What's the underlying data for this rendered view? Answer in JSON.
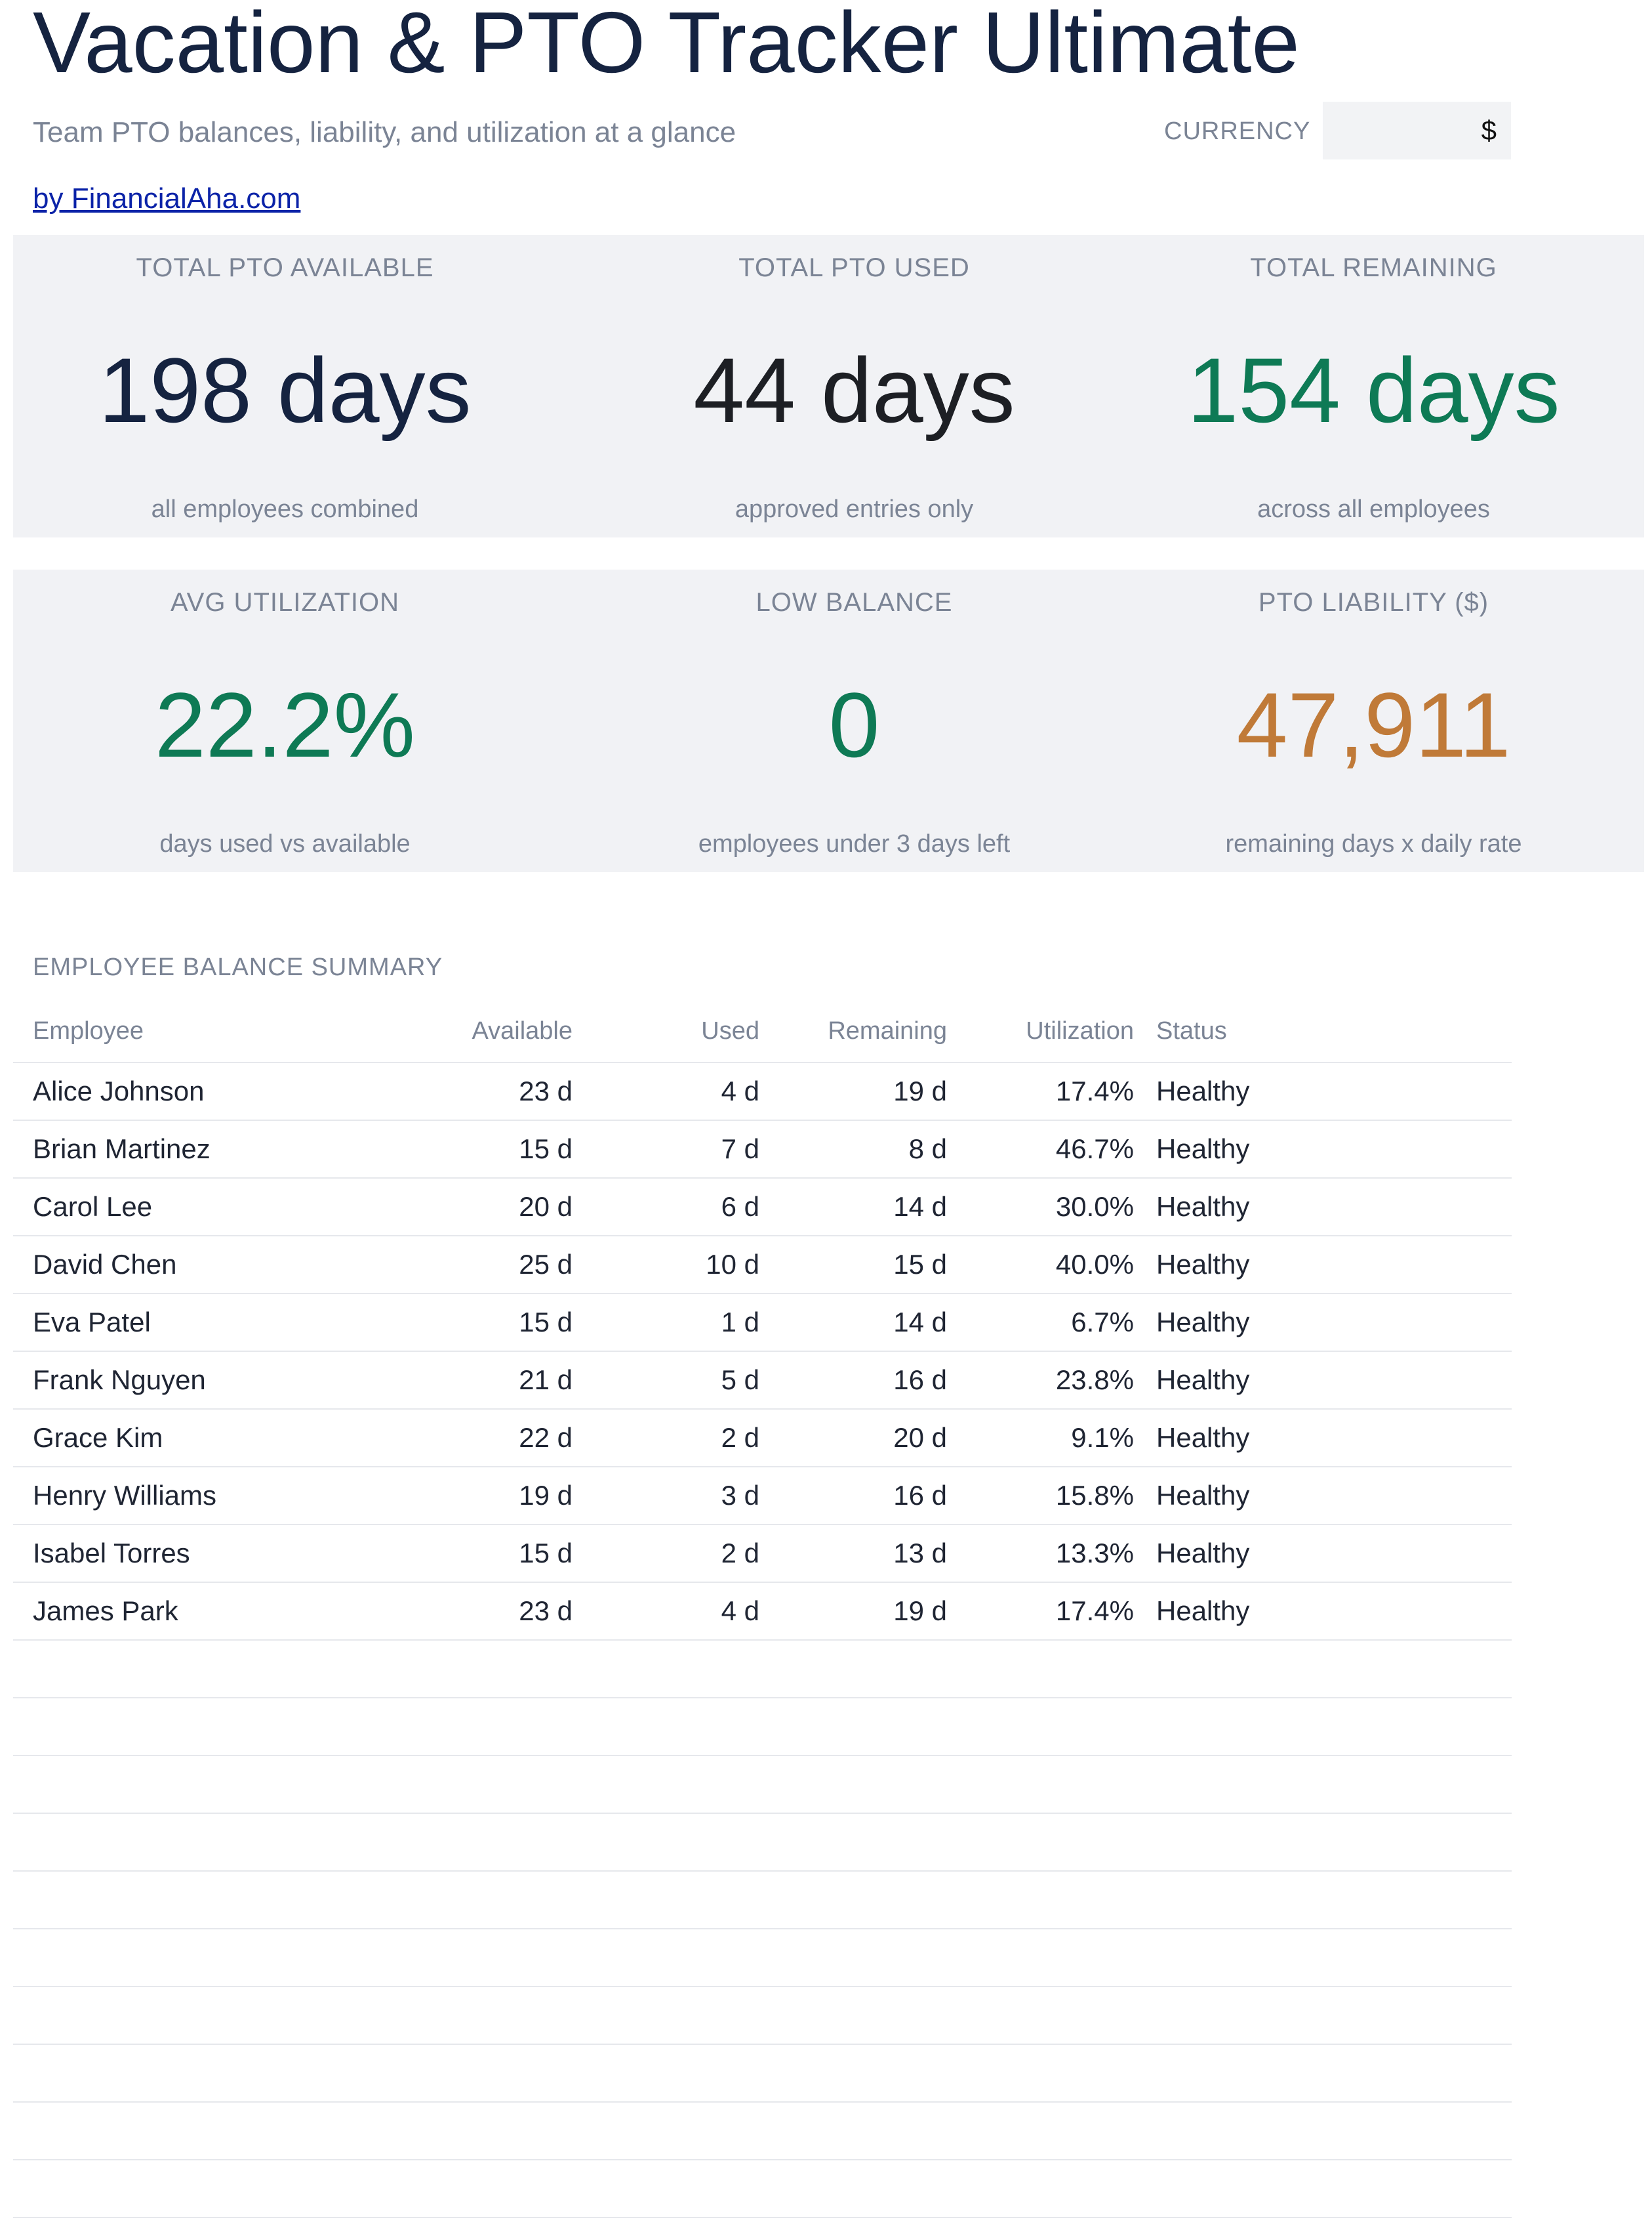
{
  "header": {
    "title": "Vacation & PTO Tracker Ultimate",
    "subtitle": "Team PTO balances, liability, and utilization at a glance",
    "currency_label": "CURRENCY",
    "currency_value": "$",
    "byline": "by FinancialAha.com"
  },
  "kpis": [
    {
      "label": "TOTAL PTO AVAILABLE",
      "value": "198 days",
      "note": "all employees combined",
      "color": "#152340"
    },
    {
      "label": "TOTAL PTO USED",
      "value": "44 days",
      "note": "approved entries only",
      "color": "#1d1f24"
    },
    {
      "label": "TOTAL REMAINING",
      "value": "154 days",
      "note": "across all employees",
      "color": "#0e7a55"
    },
    {
      "label": "AVG UTILIZATION",
      "value": "22.2%",
      "note": "days used vs available",
      "color": "#0e7a55"
    },
    {
      "label": "LOW BALANCE",
      "value": "0",
      "note": "employees under 3 days left",
      "color": "#0e7a55"
    },
    {
      "label": "PTO LIABILITY ($)",
      "value": "47,911",
      "note": "remaining days x daily rate",
      "color": "#c07a38"
    }
  ],
  "summary": {
    "title": "EMPLOYEE BALANCE SUMMARY",
    "columns": [
      "Employee",
      "Available",
      "Used",
      "Remaining",
      "Utilization",
      "Status"
    ],
    "rows": [
      {
        "employee": "Alice Johnson",
        "available": "23 d",
        "used": "4 d",
        "remaining": "19 d",
        "utilization": "17.4%",
        "status": "Healthy"
      },
      {
        "employee": "Brian Martinez",
        "available": "15 d",
        "used": "7 d",
        "remaining": "8 d",
        "utilization": "46.7%",
        "status": "Healthy"
      },
      {
        "employee": "Carol Lee",
        "available": "20 d",
        "used": "6 d",
        "remaining": "14 d",
        "utilization": "30.0%",
        "status": "Healthy"
      },
      {
        "employee": "David Chen",
        "available": "25 d",
        "used": "10 d",
        "remaining": "15 d",
        "utilization": "40.0%",
        "status": "Healthy"
      },
      {
        "employee": "Eva Patel",
        "available": "15 d",
        "used": "1 d",
        "remaining": "14 d",
        "utilization": "6.7%",
        "status": "Healthy"
      },
      {
        "employee": "Frank Nguyen",
        "available": "21 d",
        "used": "5 d",
        "remaining": "16 d",
        "utilization": "23.8%",
        "status": "Healthy"
      },
      {
        "employee": "Grace Kim",
        "available": "22 d",
        "used": "2 d",
        "remaining": "20 d",
        "utilization": "9.1%",
        "status": "Healthy"
      },
      {
        "employee": "Henry Williams",
        "available": "19 d",
        "used": "3 d",
        "remaining": "16 d",
        "utilization": "15.8%",
        "status": "Healthy"
      },
      {
        "employee": "Isabel Torres",
        "available": "15 d",
        "used": "2 d",
        "remaining": "13 d",
        "utilization": "13.3%",
        "status": "Healthy"
      },
      {
        "employee": "James Park",
        "available": "23 d",
        "used": "4 d",
        "remaining": "19 d",
        "utilization": "17.4%",
        "status": "Healthy"
      },
      {
        "employee": "",
        "available": "",
        "used": "",
        "remaining": "",
        "utilization": "",
        "status": ""
      },
      {
        "employee": "",
        "available": "",
        "used": "",
        "remaining": "",
        "utilization": "",
        "status": ""
      },
      {
        "employee": "",
        "available": "",
        "used": "",
        "remaining": "",
        "utilization": "",
        "status": ""
      },
      {
        "employee": "",
        "available": "",
        "used": "",
        "remaining": "",
        "utilization": "",
        "status": ""
      },
      {
        "employee": "",
        "available": "",
        "used": "",
        "remaining": "",
        "utilization": "",
        "status": ""
      },
      {
        "employee": "",
        "available": "",
        "used": "",
        "remaining": "",
        "utilization": "",
        "status": ""
      },
      {
        "employee": "",
        "available": "",
        "used": "",
        "remaining": "",
        "utilization": "",
        "status": ""
      },
      {
        "employee": "",
        "available": "",
        "used": "",
        "remaining": "",
        "utilization": "",
        "status": ""
      },
      {
        "employee": "",
        "available": "",
        "used": "",
        "remaining": "",
        "utilization": "",
        "status": ""
      },
      {
        "employee": "",
        "available": "",
        "used": "",
        "remaining": "",
        "utilization": "",
        "status": ""
      }
    ]
  }
}
